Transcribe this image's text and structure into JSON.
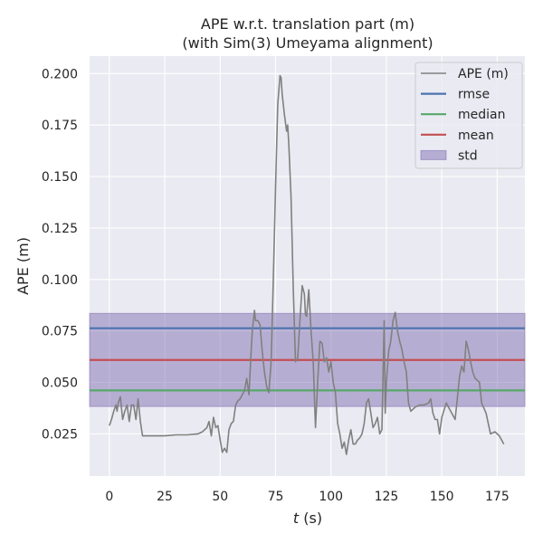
{
  "chart_data": {
    "type": "line",
    "title_line1": "APE w.r.t. translation part (m)",
    "title_line2": "(with Sim(3) Umeyama alignment)",
    "xlabel_italic": "t",
    "xlabel_rest": " (s)",
    "ylabel": "APE (m)",
    "xlim": [
      -8.9,
      187.5
    ],
    "ylim": [
      0.0045,
      0.2085
    ],
    "xticks": [
      0,
      25,
      50,
      75,
      100,
      125,
      150,
      175
    ],
    "xtick_labels": [
      "0",
      "25",
      "50",
      "75",
      "100",
      "125",
      "150",
      "175"
    ],
    "yticks": [
      0.025,
      0.05,
      0.075,
      0.1,
      0.125,
      0.15,
      0.175,
      0.2
    ],
    "ytick_labels": [
      "0.025",
      "0.050",
      "0.075",
      "0.100",
      "0.125",
      "0.150",
      "0.175",
      "0.200"
    ],
    "grid": true,
    "legend_position": "top-right",
    "series": [
      {
        "name": "APE (m)",
        "color": "#808080",
        "x": [
          0,
          1,
          2,
          3,
          3.5,
          4,
          5,
          6,
          7,
          8,
          9,
          10,
          11,
          12,
          13,
          14,
          15,
          20,
          25,
          30,
          35,
          40,
          42,
          44,
          45,
          46,
          47,
          48,
          49,
          50,
          51,
          52,
          53,
          54,
          55,
          56,
          57,
          58,
          59,
          60,
          61,
          62,
          63,
          64,
          64.5,
          65,
          65.5,
          66,
          67,
          68,
          69,
          70,
          71,
          72,
          73,
          74,
          75,
          76,
          77,
          77.5,
          78,
          79,
          80,
          80.5,
          81,
          82,
          83,
          84,
          85,
          86,
          87,
          88,
          88.5,
          89,
          90,
          91,
          92,
          93,
          94,
          95,
          96,
          97,
          98,
          99,
          100,
          101,
          102,
          103,
          104,
          105,
          106,
          107,
          108,
          109,
          110,
          111,
          112,
          113,
          114,
          115,
          116,
          117,
          118,
          119,
          120,
          121,
          122,
          123,
          124,
          124.5,
          125,
          126,
          127,
          128,
          129,
          130,
          131,
          132,
          133,
          134,
          135,
          136,
          138,
          140,
          142,
          144,
          145,
          146,
          147,
          148,
          149,
          150,
          152,
          154,
          156,
          157,
          158,
          159,
          160,
          161,
          162,
          163,
          164,
          165,
          166,
          167,
          168,
          170,
          172,
          174,
          176,
          178
        ],
        "y": [
          0.029,
          0.032,
          0.036,
          0.039,
          0.036,
          0.04,
          0.043,
          0.032,
          0.036,
          0.039,
          0.031,
          0.039,
          0.039,
          0.032,
          0.042,
          0.031,
          0.024,
          0.024,
          0.024,
          0.0245,
          0.0245,
          0.025,
          0.026,
          0.028,
          0.031,
          0.024,
          0.033,
          0.028,
          0.029,
          0.022,
          0.016,
          0.018,
          0.016,
          0.027,
          0.03,
          0.031,
          0.039,
          0.041,
          0.042,
          0.044,
          0.046,
          0.052,
          0.044,
          0.065,
          0.075,
          0.08,
          0.085,
          0.08,
          0.08,
          0.078,
          0.065,
          0.055,
          0.048,
          0.045,
          0.06,
          0.1,
          0.145,
          0.185,
          0.199,
          0.198,
          0.19,
          0.18,
          0.172,
          0.175,
          0.165,
          0.14,
          0.095,
          0.06,
          0.062,
          0.08,
          0.097,
          0.093,
          0.083,
          0.082,
          0.095,
          0.075,
          0.06,
          0.028,
          0.05,
          0.07,
          0.069,
          0.06,
          0.062,
          0.055,
          0.06,
          0.05,
          0.045,
          0.03,
          0.025,
          0.018,
          0.021,
          0.015,
          0.022,
          0.027,
          0.02,
          0.02,
          0.022,
          0.023,
          0.025,
          0.03,
          0.04,
          0.042,
          0.035,
          0.028,
          0.03,
          0.033,
          0.025,
          0.027,
          0.08,
          0.035,
          0.05,
          0.065,
          0.07,
          0.08,
          0.084,
          0.075,
          0.07,
          0.066,
          0.06,
          0.055,
          0.04,
          0.036,
          0.038,
          0.039,
          0.039,
          0.04,
          0.042,
          0.035,
          0.032,
          0.032,
          0.025,
          0.033,
          0.04,
          0.036,
          0.032,
          0.042,
          0.053,
          0.058,
          0.055,
          0.07,
          0.066,
          0.06,
          0.055,
          0.052,
          0.051,
          0.05,
          0.04,
          0.035,
          0.025,
          0.026,
          0.024,
          0.02
        ]
      }
    ],
    "stats": [
      {
        "name": "rmse",
        "value": 0.0763,
        "color": "#4c72b0"
      },
      {
        "name": "median",
        "value": 0.0461,
        "color": "#55a868"
      },
      {
        "name": "mean",
        "value": 0.0609,
        "color": "#c44e52"
      }
    ],
    "std": {
      "name": "std",
      "low": 0.0383,
      "high": 0.0835,
      "color": "#8172b2"
    }
  }
}
